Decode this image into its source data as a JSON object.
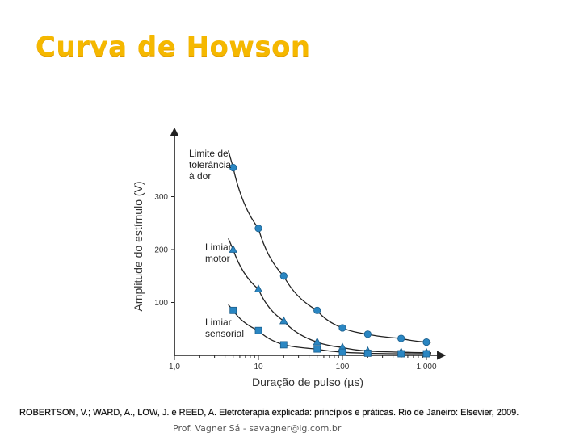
{
  "slide": {
    "title": "Curva de Howson",
    "citation": "ROBERTSON, V.; WARD, A., LOW, J. e REED, A. Eletroterapia explicada: princípios e práticas. Rio de Janeiro: Elsevier, 2009.",
    "footer": "Prof. Vagner Sá - savagner@ig.com.br"
  },
  "colors": {
    "title": "#f5b800",
    "marker": "#2a86c2",
    "marker_edge": "#1b5f8d",
    "curve": "#222222",
    "axis": "#222222"
  },
  "chart_data": {
    "type": "scatter",
    "xscale": "log",
    "xlabel": "Duração de pulso (µs)",
    "ylabel": "Amplitude do estímulo (V)",
    "xlim": [
      1,
      1000
    ],
    "ylim": [
      0,
      400
    ],
    "x_ticks": [
      1,
      10,
      100,
      1000
    ],
    "x_tick_labels": [
      "1,0",
      "10",
      "100",
      "1.000"
    ],
    "y_ticks": [
      100,
      200,
      300
    ],
    "y_tick_labels": [
      "100",
      "200",
      "300"
    ],
    "series": [
      {
        "label_lines": [
          "Limite de",
          "tolerância",
          "à dor"
        ],
        "marker": "circle",
        "x": [
          5,
          10,
          20,
          50,
          100,
          200,
          500,
          1000
        ],
        "y": [
          355,
          240,
          150,
          85,
          52,
          40,
          32,
          25
        ]
      },
      {
        "label_lines": [
          "Limiar",
          "motor"
        ],
        "marker": "triangle",
        "x": [
          5,
          10,
          20,
          50,
          100,
          200,
          500,
          1000
        ],
        "y": [
          200,
          125,
          65,
          25,
          15,
          8,
          6,
          5
        ]
      },
      {
        "label_lines": [
          "Limiar",
          "sensorial"
        ],
        "marker": "square",
        "x": [
          5,
          10,
          20,
          50,
          100,
          200,
          500,
          1000
        ],
        "y": [
          85,
          47,
          20,
          12,
          6,
          4,
          3,
          3
        ]
      }
    ]
  }
}
